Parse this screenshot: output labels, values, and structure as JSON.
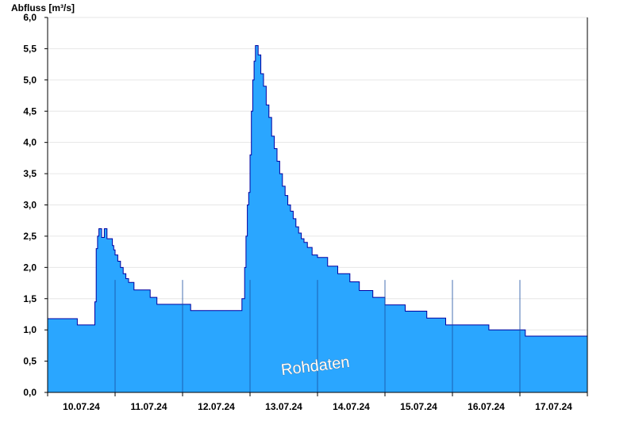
{
  "chart_data": {
    "type": "area",
    "title": "",
    "ylabel": "Abfluss [m³/s]",
    "xlabel": "",
    "ylim": [
      0,
      6.0
    ],
    "yticks": [
      "0,0",
      "0,5",
      "1,0",
      "1,5",
      "2,0",
      "2,5",
      "3,0",
      "3,5",
      "4,0",
      "4,5",
      "5,0",
      "5,5",
      "6,0"
    ],
    "ytick_values": [
      0,
      0.5,
      1.0,
      1.5,
      2.0,
      2.5,
      3.0,
      3.5,
      4.0,
      4.5,
      5.0,
      5.5,
      6.0
    ],
    "x_range_days": [
      0,
      8
    ],
    "day_labels": [
      "10.07.24",
      "11.07.24",
      "12.07.24",
      "13.07.24",
      "14.07.24",
      "15.07.24",
      "16.07.24",
      "17.07.24"
    ],
    "grid": true,
    "series": [
      {
        "color": "#2aa6ff",
        "edge_color": "#0000a0",
        "x": [
          0,
          0.44,
          0.44,
          0.66,
          0.7,
          0.72,
          0.74,
          0.76,
          0.78,
          0.8,
          0.82,
          0.84,
          0.86,
          0.88,
          0.9,
          0.92,
          0.94,
          0.96,
          0.98,
          1.0,
          1.04,
          1.08,
          1.12,
          1.16,
          1.2,
          1.28,
          1.38,
          1.52,
          1.62,
          1.8,
          1.9,
          2.0,
          2.12,
          2.4,
          2.5,
          2.84,
          2.88,
          2.92,
          2.94,
          2.96,
          2.98,
          3.0,
          3.02,
          3.04,
          3.06,
          3.08,
          3.1,
          3.12,
          3.16,
          3.2,
          3.24,
          3.28,
          3.32,
          3.36,
          3.4,
          3.44,
          3.48,
          3.52,
          3.56,
          3.6,
          3.64,
          3.68,
          3.72,
          3.76,
          3.8,
          3.85,
          3.92,
          4.0,
          4.15,
          4.3,
          4.48,
          4.62,
          4.82,
          5.0,
          5.3,
          5.62,
          5.9,
          6.0,
          6.54,
          7.0,
          7.08,
          8.0
        ],
        "y": [
          1.18,
          1.18,
          1.08,
          1.08,
          1.45,
          2.3,
          2.5,
          2.62,
          2.62,
          2.48,
          2.48,
          2.62,
          2.62,
          2.46,
          2.46,
          2.46,
          2.46,
          2.35,
          2.28,
          2.2,
          2.1,
          2.0,
          1.9,
          1.82,
          1.76,
          1.64,
          1.64,
          1.52,
          1.41,
          1.41,
          1.41,
          1.41,
          1.31,
          1.31,
          1.31,
          1.31,
          1.5,
          2.0,
          2.5,
          3.0,
          3.2,
          3.8,
          4.5,
          5.0,
          5.3,
          5.55,
          5.55,
          5.4,
          5.1,
          4.9,
          4.6,
          4.4,
          4.1,
          3.9,
          3.7,
          3.5,
          3.3,
          3.15,
          3.0,
          2.9,
          2.78,
          2.65,
          2.55,
          2.46,
          2.4,
          2.32,
          2.2,
          2.16,
          2.02,
          1.9,
          1.77,
          1.63,
          1.52,
          1.4,
          1.3,
          1.19,
          1.08,
          1.08,
          1.0,
          1.0,
          0.9,
          0.9
        ]
      }
    ],
    "annotations": [
      {
        "text": "Rohdaten"
      }
    ]
  }
}
